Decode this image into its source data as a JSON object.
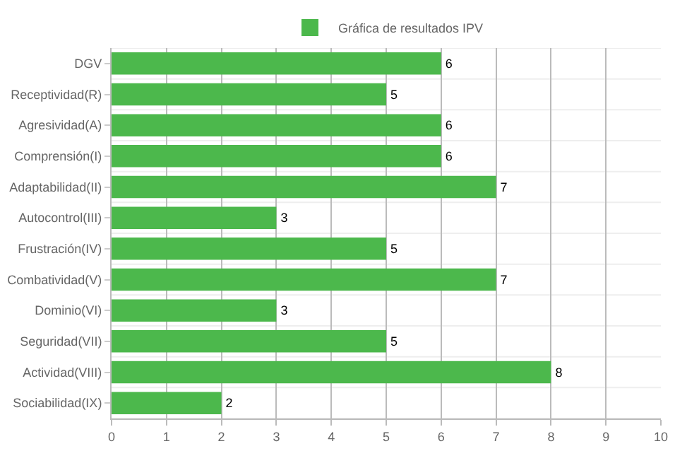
{
  "chart_data": {
    "type": "bar",
    "orientation": "horizontal",
    "categories": [
      "DGV",
      "Receptividad(R)",
      "Agresividad(A)",
      "Comprensión(I)",
      "Adaptabilidad(II)",
      "Autocontrol(III)",
      "Frustración(IV)",
      "Combatividad(V)",
      "Dominio(VI)",
      "Seguridad(VII)",
      "Actividad(VIII)",
      "Sociabilidad(IX)"
    ],
    "series": [
      {
        "name": "Gráfica de resultados IPV",
        "color": "#4cb84c",
        "values": [
          6,
          5,
          6,
          6,
          7,
          3,
          5,
          7,
          3,
          5,
          8,
          2
        ]
      }
    ],
    "xlim": [
      0,
      10
    ],
    "xticks": [
      0,
      1,
      2,
      3,
      4,
      5,
      6,
      7,
      8,
      9,
      10
    ],
    "grid": true,
    "legend": "top",
    "data_labels": true
  }
}
